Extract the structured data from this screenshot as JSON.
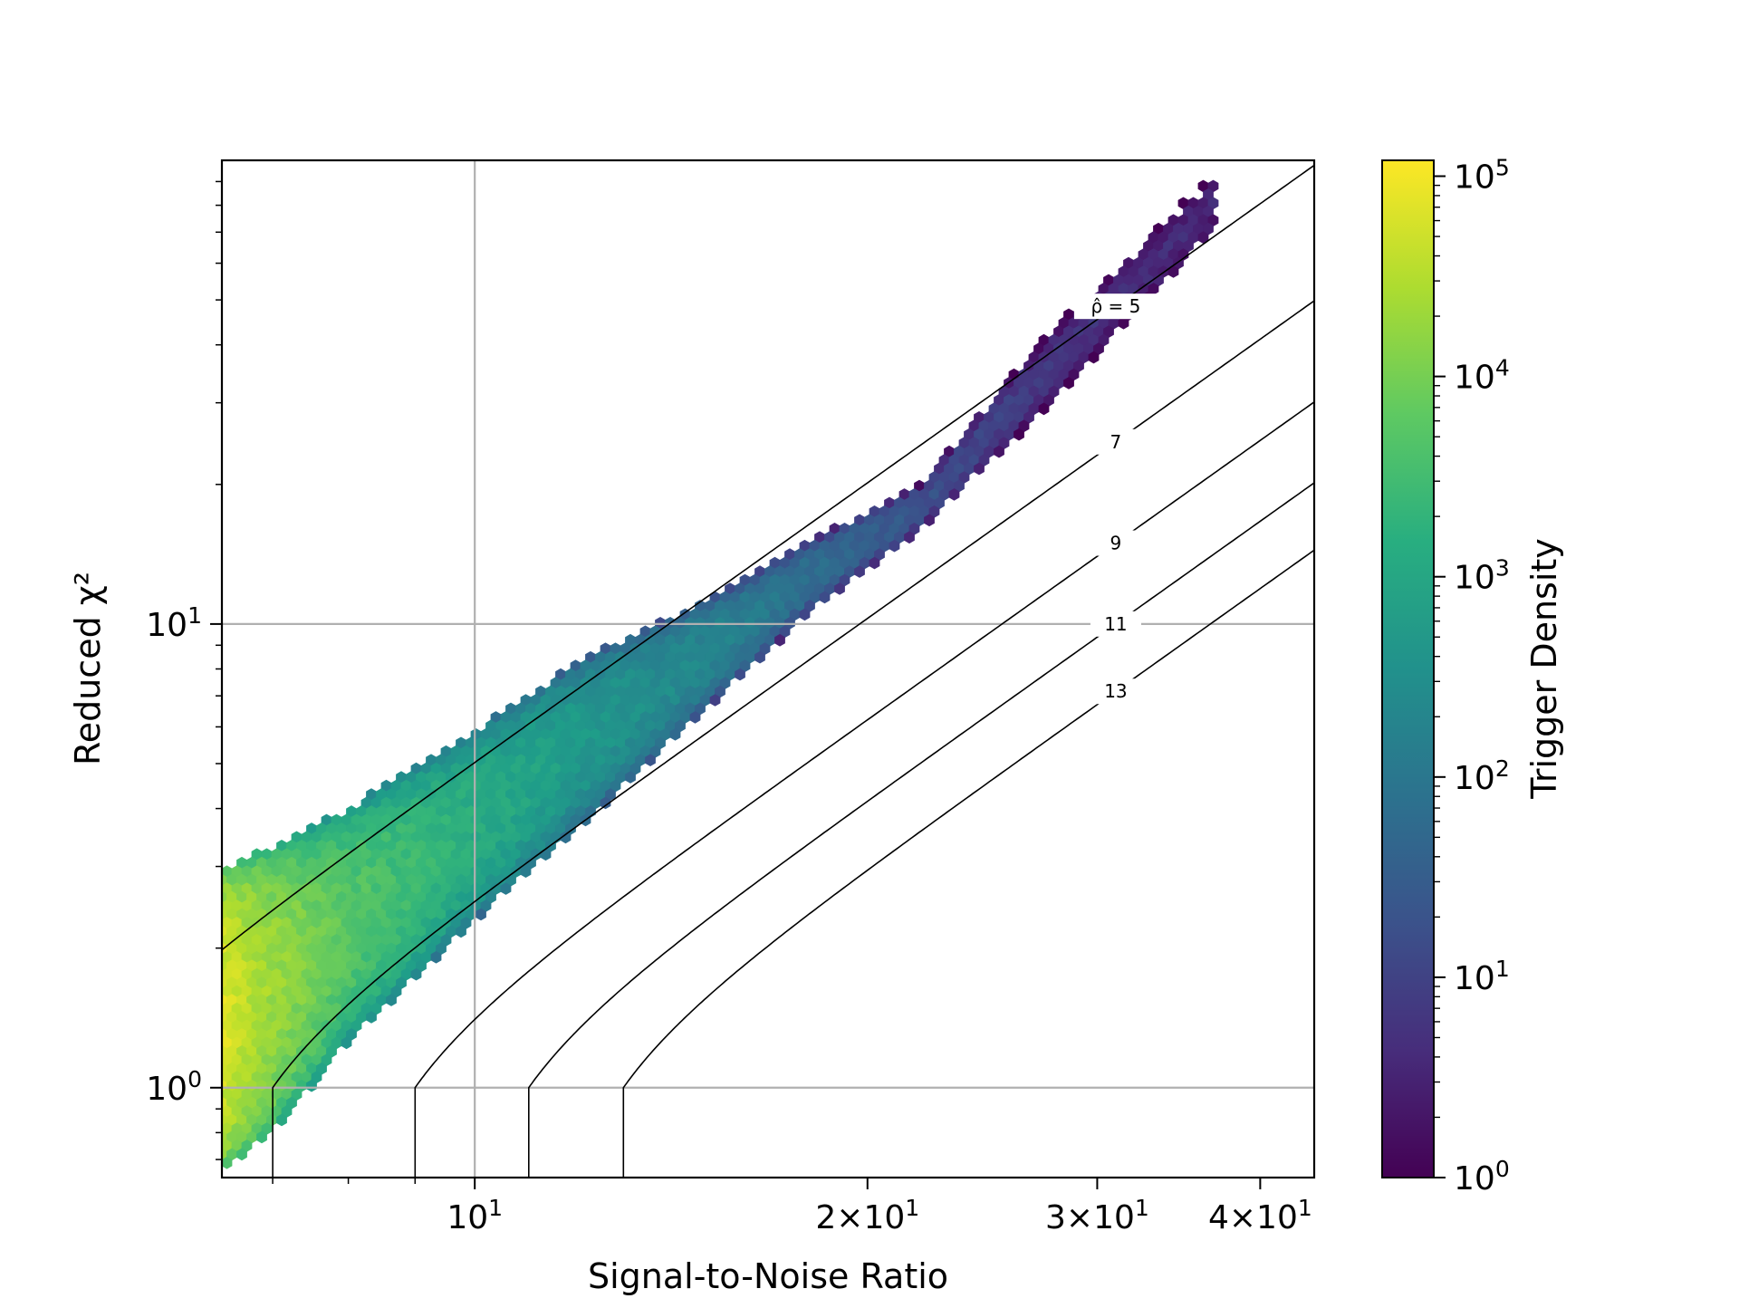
{
  "chart_data": {
    "type": "heatmap",
    "subtype": "hexbin",
    "xlabel": "Signal-to-Noise Ratio",
    "ylabel": "Reduced χ²",
    "xscale": "log",
    "yscale": "log",
    "xlim": [
      6.4,
      44
    ],
    "ylim": [
      0.64,
      100
    ],
    "grid": true,
    "x_ticks": [
      {
        "value": 10,
        "base": "10",
        "exp": "1",
        "coef": ""
      },
      {
        "value": 20,
        "base": "10",
        "exp": "1",
        "coef": "2×"
      },
      {
        "value": 30,
        "base": "10",
        "exp": "1",
        "coef": "3×"
      },
      {
        "value": 40,
        "base": "10",
        "exp": "1",
        "coef": "4×"
      }
    ],
    "x_minor_ticks": [
      7,
      8,
      9
    ],
    "y_ticks": [
      {
        "value": 1,
        "base": "10",
        "exp": "0"
      },
      {
        "value": 10,
        "base": "10",
        "exp": "1"
      }
    ],
    "contours": [
      {
        "label": "ρ̂ = 5",
        "rho": 5,
        "label_x": 31
      },
      {
        "label": "7",
        "rho": 7,
        "label_x": 31
      },
      {
        "label": "9",
        "rho": 9,
        "label_x": 31
      },
      {
        "label": "11",
        "rho": 11,
        "label_x": 31
      },
      {
        "label": "13",
        "rho": 13,
        "label_x": 31
      }
    ],
    "colorbar": {
      "label": "Trigger Density",
      "scale": "log",
      "range": [
        1,
        120000
      ],
      "colormap": "viridis",
      "ticks": [
        {
          "value": 1,
          "base": "10",
          "exp": "0"
        },
        {
          "value": 10,
          "base": "10",
          "exp": "1"
        },
        {
          "value": 100,
          "base": "10",
          "exp": "2"
        },
        {
          "value": 1000,
          "base": "10",
          "exp": "3"
        },
        {
          "value": 10000,
          "base": "10",
          "exp": "4"
        },
        {
          "value": 100000,
          "base": "10",
          "exp": "5"
        }
      ]
    },
    "density_ridge": [
      {
        "snr": 6.4,
        "upper": 2.95,
        "lower": 0.66,
        "peak": 100000
      },
      {
        "snr": 7,
        "upper": 3.3,
        "lower": 0.8,
        "peak": 30000
      },
      {
        "snr": 8,
        "upper": 4.0,
        "lower": 1.25,
        "peak": 8000
      },
      {
        "snr": 10,
        "upper": 5.9,
        "lower": 2.3,
        "peak": 2000
      },
      {
        "snr": 12,
        "upper": 8.3,
        "lower": 3.6,
        "peak": 800
      },
      {
        "snr": 15,
        "upper": 11.2,
        "lower": 6.5,
        "peak": 300
      },
      {
        "snr": 18,
        "upper": 15,
        "lower": 10.5,
        "peak": 100
      },
      {
        "snr": 22,
        "upper": 20,
        "lower": 16,
        "peak": 30
      },
      {
        "snr": 27,
        "upper": 40,
        "lower": 28,
        "peak": 10
      },
      {
        "snr": 37,
        "upper": 95,
        "lower": 70,
        "peak": 5
      }
    ]
  }
}
